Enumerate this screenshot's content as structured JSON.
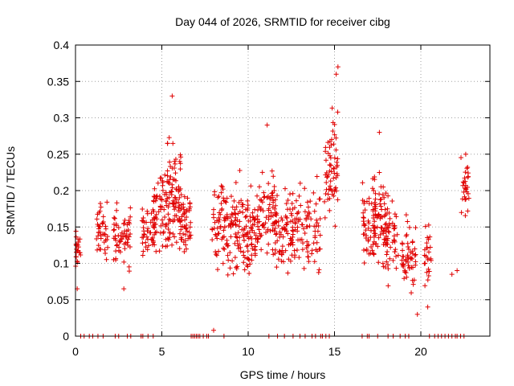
{
  "chart_data": {
    "type": "scatter",
    "title": "Day 044 of 2026, SRMTID for receiver cibg",
    "xlabel": "GPS time / hours",
    "ylabel": "SRMTID / TECUs",
    "xlim": [
      0,
      24
    ],
    "ylim": [
      0,
      0.4
    ],
    "x_ticks": [
      0,
      5,
      10,
      15,
      20
    ],
    "y_ticks": [
      0,
      0.05,
      0.1,
      0.15,
      0.2,
      0.25,
      0.3,
      0.35,
      0.4
    ],
    "y_tick_labels": [
      "0",
      "0.05",
      "0.1",
      "0.15",
      "0.2",
      "0.25",
      "0.3",
      "0.35",
      "0.4"
    ],
    "grid": true,
    "marker": "plus",
    "series_color": "#e00000",
    "clusters": [
      {
        "x_start": 0.0,
        "x_end": 0.3,
        "mean": 0.12,
        "min": 0.06,
        "max": 0.16,
        "count": 22
      },
      {
        "x_start": 1.2,
        "x_end": 1.9,
        "mean": 0.14,
        "min": 0.08,
        "max": 0.2,
        "count": 40
      },
      {
        "x_start": 2.2,
        "x_end": 3.2,
        "mean": 0.14,
        "min": 0.065,
        "max": 0.2,
        "count": 60
      },
      {
        "x_start": 3.8,
        "x_end": 4.6,
        "mean": 0.14,
        "min": 0.08,
        "max": 0.2,
        "count": 45
      },
      {
        "x_start": 4.5,
        "x_end": 5.5,
        "mean": 0.17,
        "min": 0.08,
        "max": 0.24,
        "count": 70
      },
      {
        "x_start": 5.3,
        "x_end": 6.1,
        "mean": 0.2,
        "min": 0.1,
        "max": 0.33,
        "count": 70
      },
      {
        "x_start": 6.0,
        "x_end": 6.7,
        "mean": 0.16,
        "min": 0.085,
        "max": 0.24,
        "count": 55
      },
      {
        "x_start": 7.9,
        "x_end": 8.6,
        "mean": 0.15,
        "min": 0.08,
        "max": 0.25,
        "count": 45
      },
      {
        "x_start": 8.6,
        "x_end": 9.6,
        "mean": 0.15,
        "min": 0.075,
        "max": 0.28,
        "count": 75
      },
      {
        "x_start": 9.6,
        "x_end": 10.6,
        "mean": 0.14,
        "min": 0.08,
        "max": 0.25,
        "count": 85
      },
      {
        "x_start": 10.6,
        "x_end": 11.6,
        "mean": 0.17,
        "min": 0.1,
        "max": 0.29,
        "count": 65
      },
      {
        "x_start": 11.4,
        "x_end": 12.3,
        "mean": 0.14,
        "min": 0.06,
        "max": 0.21,
        "count": 55
      },
      {
        "x_start": 12.3,
        "x_end": 13.4,
        "mean": 0.15,
        "min": 0.07,
        "max": 0.24,
        "count": 65
      },
      {
        "x_start": 13.4,
        "x_end": 14.2,
        "mean": 0.15,
        "min": 0.085,
        "max": 0.27,
        "count": 45
      },
      {
        "x_start": 14.4,
        "x_end": 15.2,
        "mean": 0.23,
        "min": 0.14,
        "max": 0.37,
        "count": 65
      },
      {
        "x_start": 16.6,
        "x_end": 17.4,
        "mean": 0.15,
        "min": 0.08,
        "max": 0.25,
        "count": 55
      },
      {
        "x_start": 17.2,
        "x_end": 18.0,
        "mean": 0.16,
        "min": 0.09,
        "max": 0.28,
        "count": 55
      },
      {
        "x_start": 17.8,
        "x_end": 18.7,
        "mean": 0.13,
        "min": 0.06,
        "max": 0.22,
        "count": 60
      },
      {
        "x_start": 18.9,
        "x_end": 19.7,
        "mean": 0.11,
        "min": 0.03,
        "max": 0.17,
        "count": 55
      },
      {
        "x_start": 20.2,
        "x_end": 20.6,
        "mean": 0.12,
        "min": 0.04,
        "max": 0.17,
        "count": 25
      },
      {
        "x_start": 22.3,
        "x_end": 22.8,
        "mean": 0.2,
        "min": 0.13,
        "max": 0.25,
        "count": 28
      }
    ],
    "baseline_points": [
      0.3,
      0.5,
      0.8,
      1.0,
      1.3,
      1.6,
      2.3,
      2.5,
      3.0,
      3.2,
      3.8,
      3.9,
      4.2,
      4.5,
      6.7,
      6.8,
      6.9,
      7.0,
      7.1,
      7.2,
      7.4,
      7.6,
      7.7,
      8.6,
      11.2,
      11.7,
      12.1,
      12.6,
      13.0,
      13.3,
      13.7,
      13.9,
      14.2,
      14.3,
      14.5,
      14.7,
      16.6,
      16.9,
      17.0,
      17.5,
      18.1,
      18.4,
      18.8,
      19.1,
      19.3,
      20.5,
      20.8,
      21.0,
      21.2,
      21.4,
      21.6,
      21.8,
      22.0,
      22.1,
      22.3,
      22.5
    ],
    "outliers": [
      {
        "x": 0.1,
        "y": 0.065
      },
      {
        "x": 2.8,
        "y": 0.065
      },
      {
        "x": 5.6,
        "y": 0.33
      },
      {
        "x": 8.0,
        "y": 0.008
      },
      {
        "x": 11.1,
        "y": 0.29
      },
      {
        "x": 15.2,
        "y": 0.37
      },
      {
        "x": 15.1,
        "y": 0.36
      },
      {
        "x": 17.6,
        "y": 0.28
      },
      {
        "x": 19.8,
        "y": 0.03
      },
      {
        "x": 20.4,
        "y": 0.04
      },
      {
        "x": 21.8,
        "y": 0.085
      },
      {
        "x": 22.1,
        "y": 0.09
      },
      {
        "x": 22.6,
        "y": 0.25
      }
    ]
  }
}
